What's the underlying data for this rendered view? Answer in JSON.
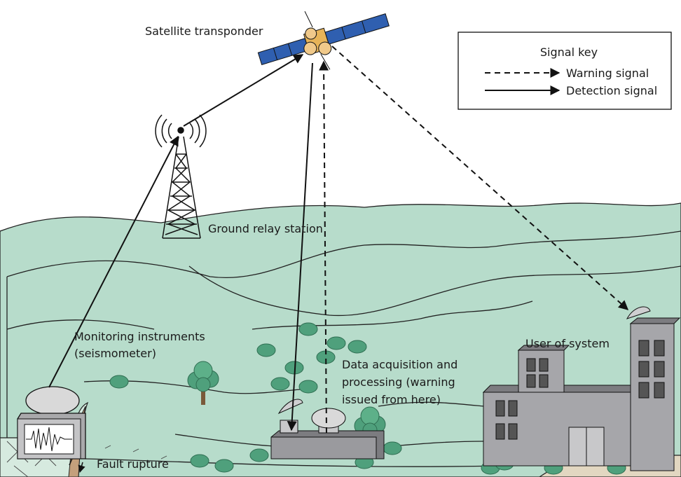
{
  "labels": {
    "satellite": "Satellite transponder",
    "relay": "Ground relay station",
    "monitoring": [
      "Monitoring instruments",
      "(seismometer)"
    ],
    "acquisition": [
      "Data acquisition and",
      "processing (warning",
      "issued from here)"
    ],
    "user": "User of system",
    "fault": "Fault rupture"
  },
  "legend": {
    "title": "Signal key",
    "items": [
      "Warning signal",
      "Detection signal"
    ]
  }
}
